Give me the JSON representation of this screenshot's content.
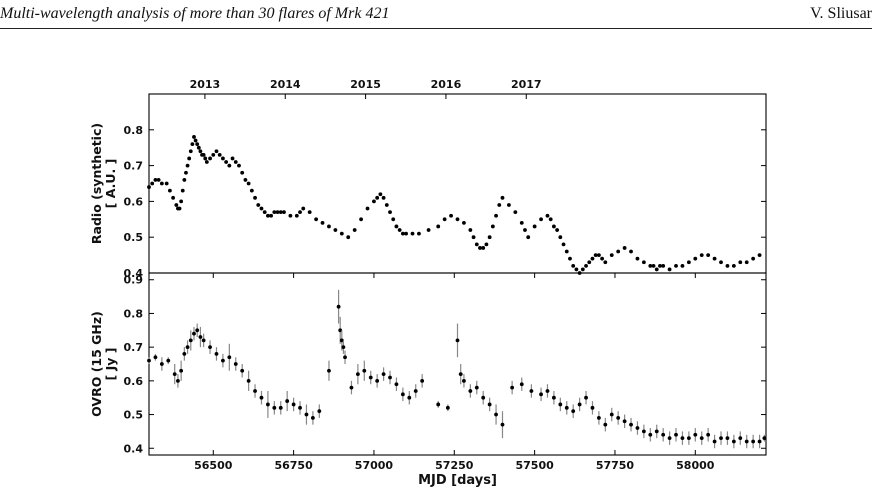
{
  "header": {
    "title": "Multi-wavelength analysis of more than 30 flares of Mrk 421",
    "author": "V. Sliusar"
  },
  "chart_data": [
    {
      "type": "scatter",
      "panel": "top",
      "ylabel": [
        "Radio (synthetic)",
        "[ A.U. ]"
      ],
      "xlim": [
        56300,
        58220
      ],
      "ylim": [
        0.4,
        0.9
      ],
      "yticks": [
        "0.4",
        "0.5",
        "0.6",
        "0.7",
        "0.8"
      ],
      "top_axis_ticks": [
        {
          "label": "2013",
          "mjd": 56474
        },
        {
          "label": "2014",
          "mjd": 56724
        },
        {
          "label": "2015",
          "mjd": 56974
        },
        {
          "label": "2016",
          "mjd": 57224
        },
        {
          "label": "2017",
          "mjd": 57474
        }
      ],
      "x": [
        56300,
        56310,
        56320,
        56330,
        56340,
        56355,
        56365,
        56375,
        56385,
        56390,
        56395,
        56400,
        56405,
        56410,
        56415,
        56420,
        56425,
        56430,
        56435,
        56440,
        56445,
        56450,
        56455,
        56460,
        56465,
        56470,
        56475,
        56480,
        56490,
        56500,
        56510,
        56520,
        56530,
        56540,
        56550,
        56560,
        56570,
        56580,
        56590,
        56600,
        56610,
        56620,
        56630,
        56640,
        56650,
        56660,
        56670,
        56680,
        56690,
        56700,
        56710,
        56720,
        56740,
        56760,
        56770,
        56780,
        56800,
        56820,
        56840,
        56860,
        56880,
        56900,
        56920,
        56940,
        56960,
        56980,
        57000,
        57010,
        57020,
        57030,
        57040,
        57050,
        57060,
        57070,
        57080,
        57090,
        57100,
        57120,
        57140,
        57170,
        57200,
        57220,
        57240,
        57260,
        57280,
        57300,
        57310,
        57320,
        57330,
        57340,
        57350,
        57360,
        57370,
        57380,
        57390,
        57400,
        57420,
        57440,
        57460,
        57470,
        57480,
        57500,
        57520,
        57540,
        57550,
        57560,
        57570,
        57580,
        57590,
        57600,
        57610,
        57620,
        57630,
        57640,
        57650,
        57660,
        57670,
        57680,
        57690,
        57700,
        57710,
        57720,
        57740,
        57760,
        57780,
        57800,
        57820,
        57840,
        57860,
        57870,
        57880,
        57890,
        57900,
        57920,
        57940,
        57960,
        57980,
        58000,
        58020,
        58040,
        58060,
        58080,
        58100,
        58120,
        58140,
        58160,
        58180,
        58200
      ],
      "y": [
        0.64,
        0.65,
        0.66,
        0.66,
        0.65,
        0.65,
        0.63,
        0.61,
        0.59,
        0.58,
        0.58,
        0.6,
        0.63,
        0.66,
        0.68,
        0.7,
        0.72,
        0.74,
        0.76,
        0.78,
        0.77,
        0.76,
        0.75,
        0.74,
        0.73,
        0.73,
        0.72,
        0.71,
        0.72,
        0.73,
        0.74,
        0.73,
        0.72,
        0.71,
        0.7,
        0.72,
        0.71,
        0.7,
        0.68,
        0.66,
        0.65,
        0.63,
        0.61,
        0.59,
        0.58,
        0.57,
        0.56,
        0.56,
        0.57,
        0.57,
        0.57,
        0.57,
        0.56,
        0.56,
        0.57,
        0.58,
        0.57,
        0.55,
        0.54,
        0.53,
        0.52,
        0.51,
        0.5,
        0.52,
        0.55,
        0.58,
        0.6,
        0.61,
        0.62,
        0.61,
        0.59,
        0.57,
        0.55,
        0.53,
        0.52,
        0.51,
        0.51,
        0.51,
        0.51,
        0.52,
        0.53,
        0.55,
        0.56,
        0.55,
        0.54,
        0.52,
        0.5,
        0.48,
        0.47,
        0.47,
        0.48,
        0.5,
        0.53,
        0.56,
        0.59,
        0.61,
        0.59,
        0.57,
        0.54,
        0.52,
        0.5,
        0.53,
        0.55,
        0.56,
        0.55,
        0.53,
        0.52,
        0.5,
        0.48,
        0.46,
        0.44,
        0.42,
        0.41,
        0.4,
        0.41,
        0.42,
        0.43,
        0.44,
        0.45,
        0.45,
        0.44,
        0.43,
        0.45,
        0.46,
        0.47,
        0.46,
        0.44,
        0.43,
        0.42,
        0.42,
        0.41,
        0.42,
        0.42,
        0.41,
        0.42,
        0.42,
        0.43,
        0.44,
        0.45,
        0.45,
        0.44,
        0.43,
        0.42,
        0.42,
        0.43,
        0.43,
        0.44,
        0.45
      ]
    },
    {
      "type": "scatter",
      "panel": "bottom",
      "ylabel": [
        "OVRO (15 GHz)",
        "[ Jy ]"
      ],
      "xlabel": "MJD [days]",
      "xlim": [
        56300,
        58220
      ],
      "ylim": [
        0.38,
        0.92
      ],
      "yticks": [
        "0.4",
        "0.5",
        "0.6",
        "0.7",
        "0.8",
        "0.9"
      ],
      "xticks": [
        "56500",
        "56750",
        "57000",
        "57250",
        "57500",
        "57750",
        "58000"
      ],
      "x": [
        56300,
        56320,
        56340,
        56360,
        56380,
        56390,
        56400,
        56410,
        56420,
        56430,
        56440,
        56450,
        56460,
        56470,
        56490,
        56510,
        56530,
        56550,
        56570,
        56590,
        56610,
        56630,
        56650,
        56670,
        56690,
        56710,
        56730,
        56750,
        56770,
        56790,
        56810,
        56830,
        56860,
        56890,
        56895,
        56900,
        56905,
        56910,
        56930,
        56950,
        56970,
        56990,
        57010,
        57030,
        57050,
        57070,
        57090,
        57110,
        57130,
        57150,
        57200,
        57230,
        57260,
        57270,
        57280,
        57300,
        57320,
        57340,
        57360,
        57380,
        57400,
        57430,
        57460,
        57490,
        57520,
        57540,
        57560,
        57580,
        57600,
        57620,
        57640,
        57660,
        57680,
        57700,
        57720,
        57740,
        57760,
        57780,
        57800,
        57820,
        57840,
        57860,
        57880,
        57900,
        57920,
        57940,
        57960,
        57980,
        58000,
        58020,
        58040,
        58060,
        58080,
        58100,
        58120,
        58140,
        58160,
        58180,
        58200,
        58215
      ],
      "y": [
        0.66,
        0.67,
        0.65,
        0.66,
        0.62,
        0.6,
        0.63,
        0.68,
        0.7,
        0.72,
        0.74,
        0.75,
        0.73,
        0.72,
        0.7,
        0.68,
        0.66,
        0.67,
        0.65,
        0.63,
        0.6,
        0.57,
        0.55,
        0.53,
        0.52,
        0.52,
        0.54,
        0.53,
        0.52,
        0.5,
        0.49,
        0.51,
        0.63,
        0.82,
        0.75,
        0.72,
        0.7,
        0.67,
        0.58,
        0.62,
        0.63,
        0.61,
        0.6,
        0.62,
        0.61,
        0.59,
        0.56,
        0.55,
        0.57,
        0.6,
        0.53,
        0.52,
        0.72,
        0.62,
        0.6,
        0.57,
        0.58,
        0.55,
        0.53,
        0.5,
        0.47,
        0.58,
        0.59,
        0.57,
        0.56,
        0.57,
        0.55,
        0.53,
        0.52,
        0.51,
        0.53,
        0.55,
        0.52,
        0.49,
        0.47,
        0.5,
        0.49,
        0.48,
        0.47,
        0.46,
        0.45,
        0.44,
        0.45,
        0.44,
        0.43,
        0.44,
        0.43,
        0.43,
        0.44,
        0.43,
        0.44,
        0.42,
        0.43,
        0.43,
        0.42,
        0.43,
        0.42,
        0.42,
        0.42,
        0.43
      ],
      "err": [
        0.01,
        0.01,
        0.02,
        0.01,
        0.03,
        0.02,
        0.03,
        0.02,
        0.02,
        0.03,
        0.02,
        0.02,
        0.03,
        0.02,
        0.02,
        0.02,
        0.02,
        0.04,
        0.02,
        0.02,
        0.03,
        0.02,
        0.02,
        0.04,
        0.02,
        0.02,
        0.03,
        0.02,
        0.02,
        0.03,
        0.02,
        0.02,
        0.03,
        0.05,
        0.04,
        0.03,
        0.02,
        0.02,
        0.02,
        0.03,
        0.03,
        0.02,
        0.02,
        0.02,
        0.02,
        0.02,
        0.02,
        0.02,
        0.02,
        0.02,
        0.01,
        0.01,
        0.05,
        0.03,
        0.02,
        0.02,
        0.02,
        0.02,
        0.02,
        0.03,
        0.04,
        0.02,
        0.02,
        0.02,
        0.02,
        0.02,
        0.02,
        0.02,
        0.02,
        0.02,
        0.02,
        0.02,
        0.02,
        0.02,
        0.02,
        0.02,
        0.02,
        0.02,
        0.02,
        0.02,
        0.02,
        0.02,
        0.02,
        0.02,
        0.02,
        0.02,
        0.02,
        0.02,
        0.02,
        0.02,
        0.02,
        0.02,
        0.02,
        0.02,
        0.02,
        0.02,
        0.02,
        0.02,
        0.02,
        0.01
      ]
    }
  ]
}
